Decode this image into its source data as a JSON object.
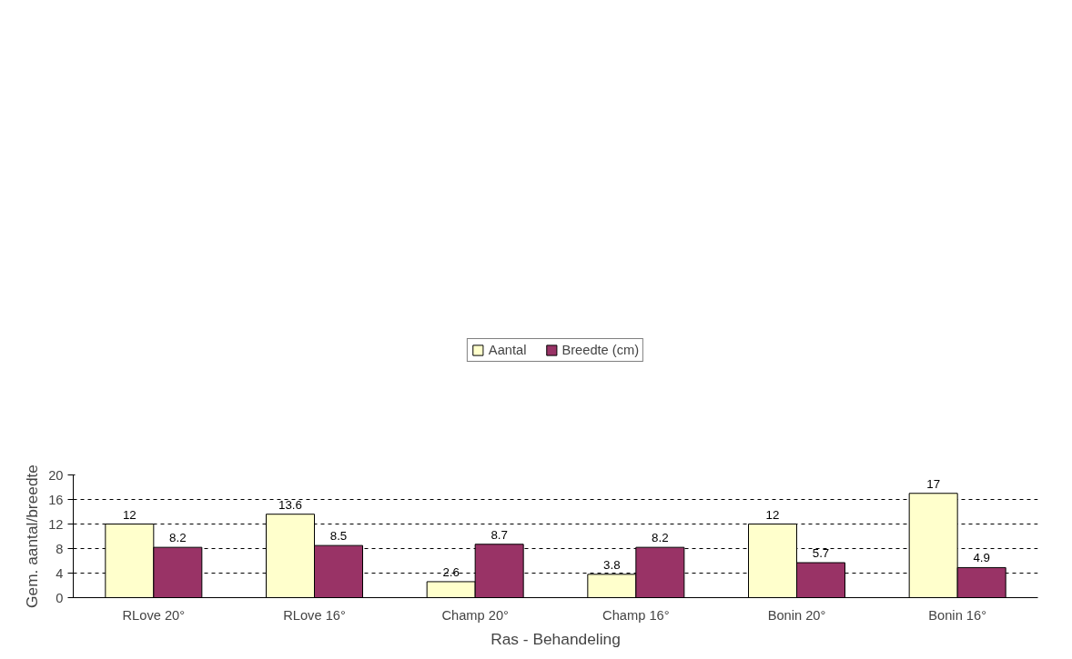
{
  "chart_data": {
    "type": "bar",
    "xlabel": "Ras - Behandeling",
    "ylabel": "Gem. aantal/breedte",
    "categories": [
      "RLove 20°",
      "RLove 16°",
      "Champ 20°",
      "Champ 16°",
      "Bonin 20°",
      "Bonin 16°"
    ],
    "series": [
      {
        "name": "Aantal",
        "color": "#ffffcc",
        "values": [
          12,
          13.6,
          2.6,
          3.8,
          12,
          17
        ]
      },
      {
        "name": "Breedte (cm)",
        "color": "#993366",
        "values": [
          8.2,
          8.5,
          8.7,
          8.2,
          5.7,
          4.9
        ]
      }
    ],
    "ylim": [
      0,
      20
    ],
    "yticks": [
      0,
      4,
      8,
      12,
      16,
      20
    ],
    "grid": "y",
    "legend": "top",
    "data_labels": true
  }
}
